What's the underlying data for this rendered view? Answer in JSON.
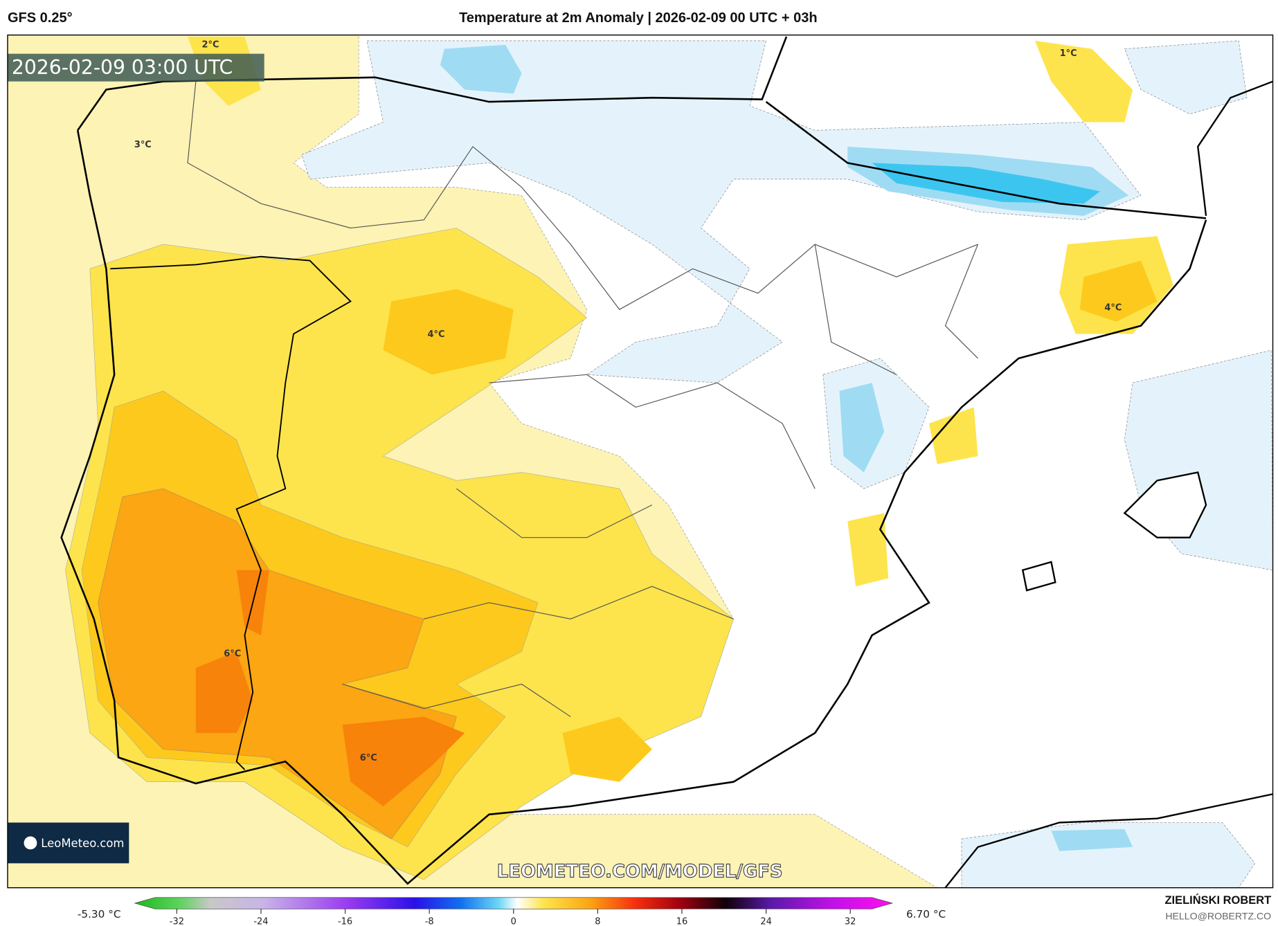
{
  "header": {
    "model": "GFS 0.25°",
    "title": "Temperature at 2m Anomaly | 2026-02-09 00 UTC + 03h"
  },
  "map": {
    "valid_time": "2026-02-09 03:00 UTC",
    "contour_labels": [
      "2°C",
      "1°C",
      "3°C",
      "4°C",
      "4°C",
      "6°C",
      "6°C"
    ],
    "watermark": "LEOMETEO.COM/MODEL/GFS",
    "logo": "LeoMeteo.com",
    "colors": {
      "pale_yellow": "#fdf3b4",
      "yellow": "#fde44c",
      "gold": "#fdc91c",
      "orange": "#fba612",
      "dark_orange": "#f7830b",
      "light_blue": "#e4f3fb",
      "blue": "#9fdcf3",
      "cyan": "#3cc6ef"
    }
  },
  "colorbar": {
    "min_label": "-5.30 °C",
    "max_label": "6.70 °C",
    "ticks": [
      "-32",
      "-24",
      "-16",
      "-8",
      "0",
      "8",
      "16",
      "24",
      "32"
    ],
    "range": [
      -36,
      36
    ]
  },
  "footer": {
    "author": "ZIELIŃSKI ROBERT",
    "contact": "HELLO@ROBERTZ.CO"
  }
}
